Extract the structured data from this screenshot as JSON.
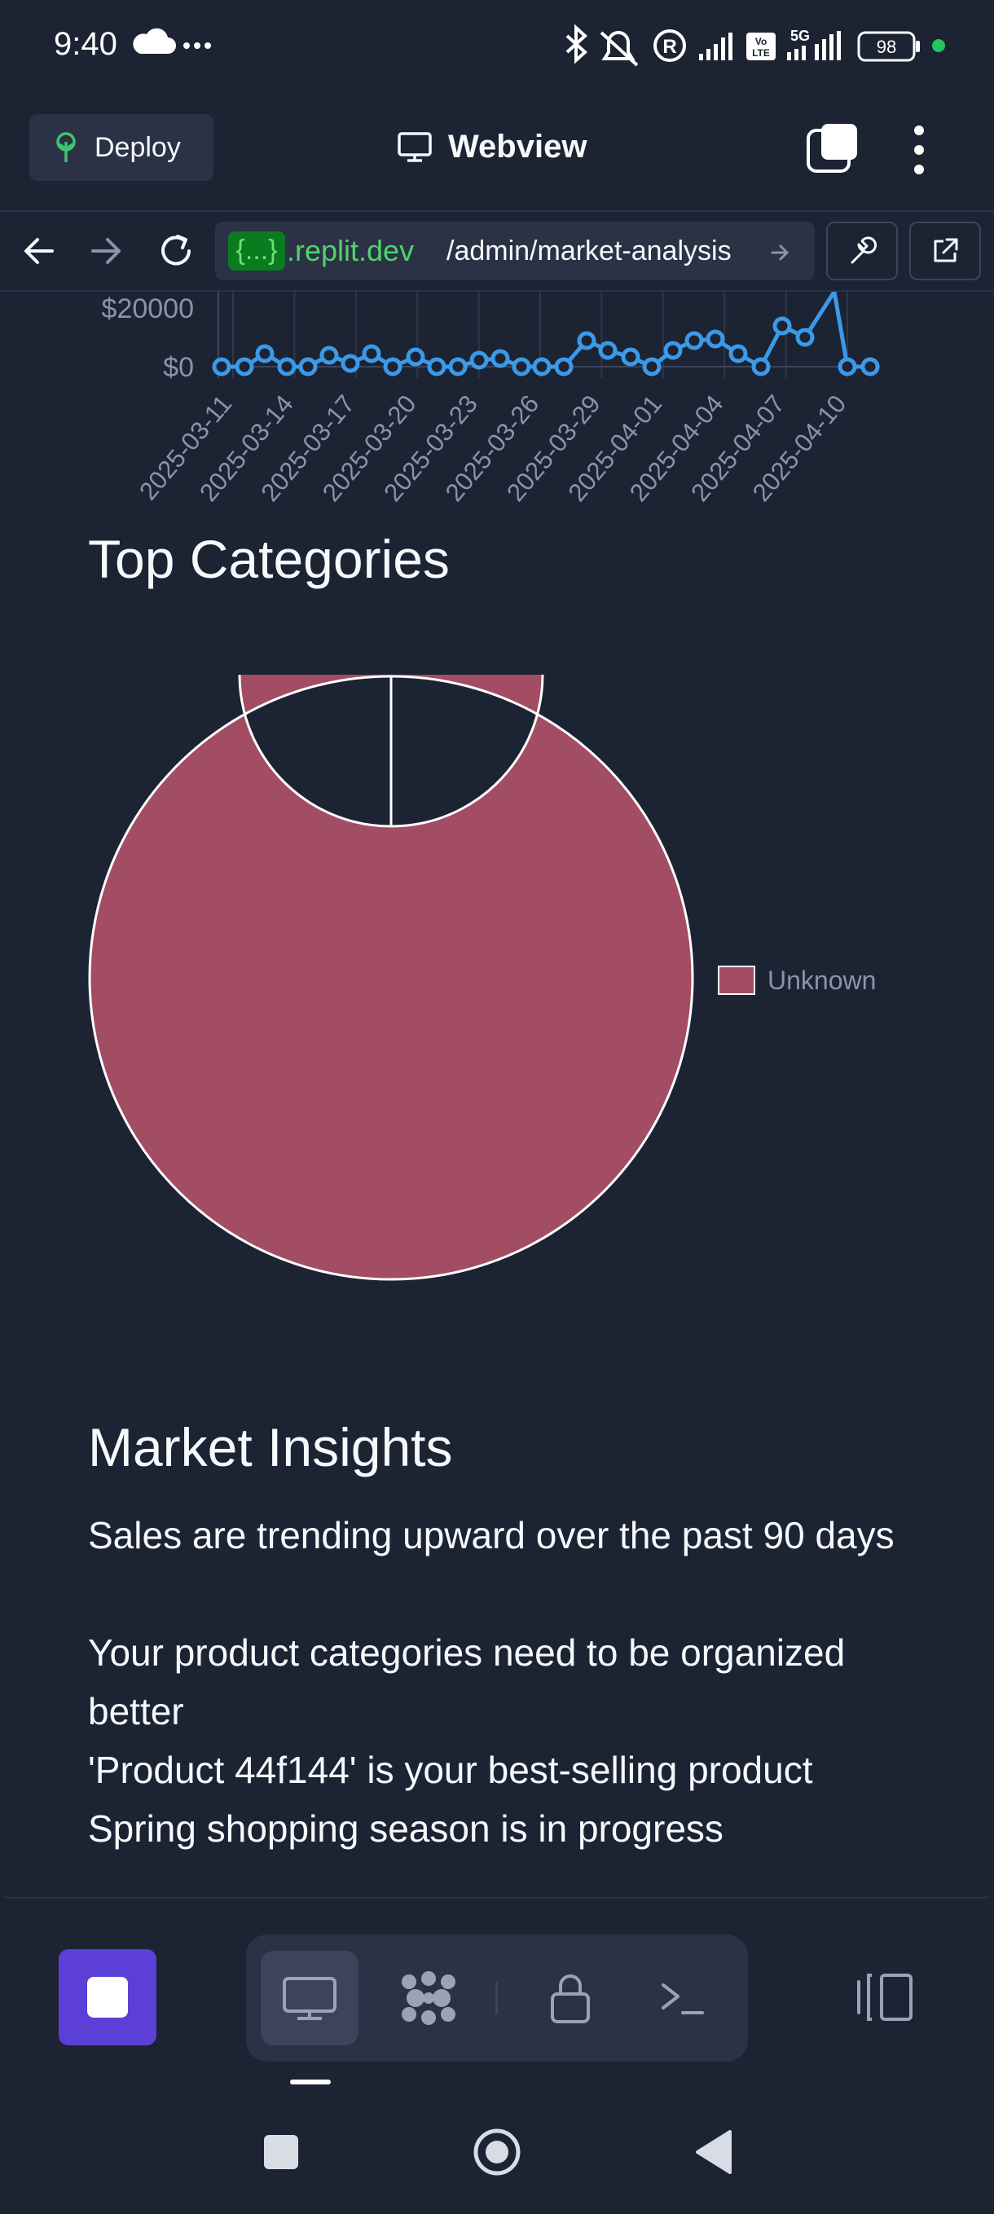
{
  "status_bar": {
    "time": "9:40",
    "battery": "98",
    "icons": [
      "cloud-icon",
      "more-icon",
      "bluetooth-icon",
      "mute-icon",
      "registered-icon",
      "signal-icon",
      "volte-icon",
      "5g-signal-icon",
      "battery-icon",
      "active-dot-icon"
    ]
  },
  "app_bar": {
    "deploy_label": "Deploy",
    "title": "Webview"
  },
  "url_bar": {
    "chip": "{...}",
    "host": ".replit.dev",
    "path": "/admin/market-analysis"
  },
  "sales_chart": {
    "y_ticks": [
      "$20000",
      "$0"
    ],
    "x_ticks": [
      "2025-03-11",
      "2025-03-14",
      "2025-03-17",
      "2025-03-20",
      "2025-03-23",
      "2025-03-26",
      "2025-03-29",
      "2025-04-01",
      "2025-04-04",
      "2025-04-07",
      "2025-04-10"
    ]
  },
  "chart_data": {
    "type": "pie",
    "title": "Top Categories",
    "categories": [
      "Unknown"
    ],
    "values": [
      100
    ],
    "colors": [
      "#a34d64"
    ],
    "legend_position": "right"
  },
  "insights": {
    "title": "Market Insights",
    "items": [
      "Sales are trending upward over the past 90 days",
      "Your product categories need to be organized better",
      "'Product 44f144' is your best-selling product",
      "Spring shopping season is in progress"
    ]
  },
  "colors": {
    "background": "#1c2333",
    "surface": "#2b3245",
    "accent": "#5b3fd6",
    "line_series": "#3b9ae8",
    "donut": "#a34d64"
  }
}
